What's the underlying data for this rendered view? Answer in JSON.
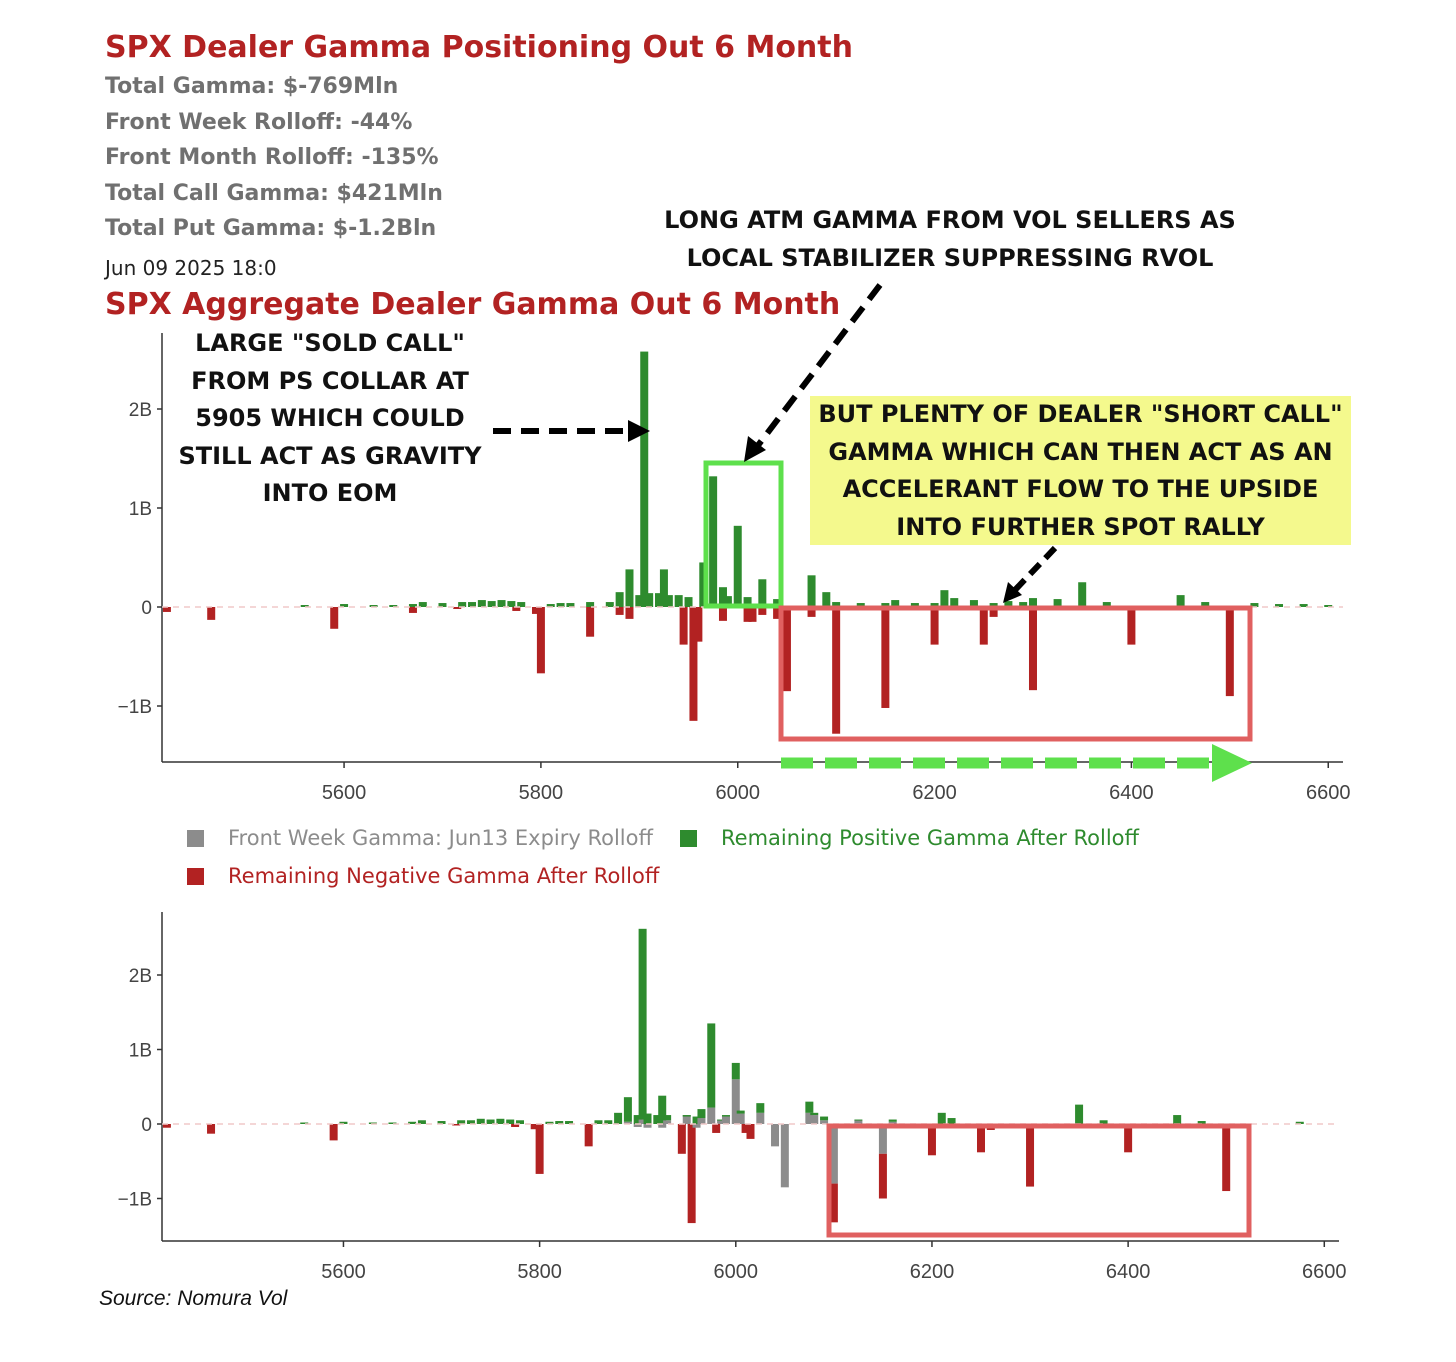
{
  "header": {
    "title": "SPX Dealer Gamma Positioning Out 6 Month",
    "stats": [
      "Total Gamma: $-769Mln",
      "Front Week Rolloff: -44%",
      "Front Month Rolloff: -135%",
      "Total Call Gamma: $421Mln",
      "Total Put Gamma: $-1.2Bln"
    ],
    "timestamp": "Jun 09 2025 18:0",
    "subtitle": "SPX Aggregate Dealer Gamma Out 6 Month"
  },
  "annotations": {
    "sold_call": [
      "LARGE \"SOLD CALL\"",
      "FROM PS COLLAR AT",
      "5905 WHICH COULD",
      "STILL ACT AS GRAVITY",
      "INTO EOM"
    ],
    "long_atm": [
      "LONG ATM GAMMA FROM VOL SELLERS AS",
      "LOCAL STABILIZER SUPPRESSING RVOL"
    ],
    "short_call": [
      "BUT PLENTY OF DEALER \"SHORT CALL\"",
      "GAMMA WHICH CAN THEN ACT AS AN",
      "ACCELERANT FLOW TO THE UPSIDE",
      "INTO FURTHER SPOT RALLY"
    ]
  },
  "legend": {
    "front_week": "Front Week Gamma: Jun13 Expiry Rolloff",
    "positive": "Remaining Positive Gamma After Rolloff",
    "negative": "Remaining Negative Gamma After Rolloff"
  },
  "source": "Source: Nomura Vol",
  "colors": {
    "title_red": "#b22222",
    "positive": "#2e8b2e",
    "negative": "#b22222",
    "rolloff": "#8c8c8c",
    "highlight_green": "#5ee04c",
    "highlight_red": "#e06060",
    "note_bg": "#f4f98d"
  },
  "chart_data": [
    {
      "type": "bar",
      "name": "aggregate",
      "xlim": [
        5415,
        6615
      ],
      "xticks": [
        5600,
        5800,
        6000,
        6200,
        6400,
        6600
      ],
      "ylim": [
        -1.55,
        2.75
      ],
      "yticks": [
        {
          "v": 2,
          "label": "2B"
        },
        {
          "v": 1,
          "label": "1B"
        },
        {
          "v": 0,
          "label": "0"
        },
        {
          "v": -1,
          "label": "−1B"
        }
      ],
      "positive": [
        [
          5560,
          0.02
        ],
        [
          5600,
          0.03
        ],
        [
          5630,
          0.02
        ],
        [
          5650,
          0.02
        ],
        [
          5670,
          0.03
        ],
        [
          5680,
          0.05
        ],
        [
          5700,
          0.04
        ],
        [
          5720,
          0.05
        ],
        [
          5730,
          0.05
        ],
        [
          5740,
          0.07
        ],
        [
          5750,
          0.06
        ],
        [
          5760,
          0.07
        ],
        [
          5770,
          0.06
        ],
        [
          5780,
          0.05
        ],
        [
          5810,
          0.03
        ],
        [
          5820,
          0.04
        ],
        [
          5830,
          0.04
        ],
        [
          5850,
          0.05
        ],
        [
          5870,
          0.05
        ],
        [
          5880,
          0.15
        ],
        [
          5890,
          0.38
        ],
        [
          5900,
          0.12
        ],
        [
          5905,
          2.58
        ],
        [
          5910,
          0.14
        ],
        [
          5920,
          0.14
        ],
        [
          5925,
          0.38
        ],
        [
          5930,
          0.12
        ],
        [
          5940,
          0.12
        ],
        [
          5950,
          0.1
        ],
        [
          5965,
          0.45
        ],
        [
          5975,
          1.32
        ],
        [
          5985,
          0.2
        ],
        [
          5990,
          0.11
        ],
        [
          6000,
          0.82
        ],
        [
          6010,
          0.1
        ],
        [
          6025,
          0.28
        ],
        [
          6040,
          0.08
        ],
        [
          6075,
          0.32
        ],
        [
          6090,
          0.15
        ],
        [
          6100,
          0.05
        ],
        [
          6125,
          0.04
        ],
        [
          6150,
          0.04
        ],
        [
          6160,
          0.07
        ],
        [
          6180,
          0.04
        ],
        [
          6200,
          0.04
        ],
        [
          6210,
          0.17
        ],
        [
          6220,
          0.09
        ],
        [
          6240,
          0.07
        ],
        [
          6260,
          0.04
        ],
        [
          6275,
          0.06
        ],
        [
          6290,
          0.05
        ],
        [
          6300,
          0.09
        ],
        [
          6325,
          0.08
        ],
        [
          6350,
          0.25
        ],
        [
          6375,
          0.05
        ],
        [
          6450,
          0.12
        ],
        [
          6475,
          0.05
        ],
        [
          6525,
          0.04
        ],
        [
          6550,
          0.03
        ],
        [
          6575,
          0.03
        ],
        [
          6600,
          0.02
        ]
      ],
      "negative": [
        [
          5420,
          -0.05
        ],
        [
          5465,
          -0.13
        ],
        [
          5590,
          -0.22
        ],
        [
          5670,
          -0.06
        ],
        [
          5715,
          -0.02
        ],
        [
          5775,
          -0.04
        ],
        [
          5795,
          -0.07
        ],
        [
          5800,
          -0.67
        ],
        [
          5850,
          -0.3
        ],
        [
          5880,
          -0.08
        ],
        [
          5890,
          -0.12
        ],
        [
          5945,
          -0.38
        ],
        [
          5955,
          -1.15
        ],
        [
          5960,
          -0.35
        ],
        [
          5985,
          -0.14
        ],
        [
          6010,
          -0.15
        ],
        [
          6015,
          -0.15
        ],
        [
          6025,
          -0.08
        ],
        [
          6040,
          -0.12
        ],
        [
          6050,
          -0.85
        ],
        [
          6075,
          -0.1
        ],
        [
          6100,
          -1.28
        ],
        [
          6150,
          -1.02
        ],
        [
          6200,
          -0.38
        ],
        [
          6250,
          -0.38
        ],
        [
          6260,
          -0.1
        ],
        [
          6300,
          -0.84
        ],
        [
          6400,
          -0.38
        ],
        [
          6500,
          -0.9
        ]
      ]
    },
    {
      "type": "bar",
      "name": "after_rolloff",
      "xlim": [
        5415,
        6615
      ],
      "xticks": [
        5600,
        5800,
        6000,
        6200,
        6400,
        6600
      ],
      "ylim": [
        -1.55,
        2.75
      ],
      "yticks": [
        {
          "v": 2,
          "label": "2B"
        },
        {
          "v": 1,
          "label": "1B"
        },
        {
          "v": 0,
          "label": "0"
        },
        {
          "v": -1,
          "label": "−1B"
        }
      ],
      "stacked": [
        [
          5420,
          0,
          -0.05
        ],
        [
          5465,
          0,
          -0.13
        ],
        [
          5560,
          0,
          0.02
        ],
        [
          5590,
          0,
          -0.22
        ],
        [
          5600,
          0,
          0.03
        ],
        [
          5630,
          0,
          0.02
        ],
        [
          5650,
          0,
          0.02
        ],
        [
          5670,
          0,
          0.03
        ],
        [
          5680,
          0,
          0.05
        ],
        [
          5700,
          0,
          0.04
        ],
        [
          5715,
          0,
          -0.02
        ],
        [
          5720,
          0,
          0.05
        ],
        [
          5730,
          0,
          0.05
        ],
        [
          5740,
          0,
          0.07
        ],
        [
          5750,
          0,
          0.06
        ],
        [
          5760,
          0,
          0.07
        ],
        [
          5770,
          0,
          0.06
        ],
        [
          5775,
          0,
          -0.04
        ],
        [
          5780,
          0,
          0.05
        ],
        [
          5795,
          0,
          -0.07
        ],
        [
          5800,
          0,
          -0.67
        ],
        [
          5810,
          0,
          0.03
        ],
        [
          5820,
          0,
          0.04
        ],
        [
          5830,
          0,
          0.04
        ],
        [
          5850,
          0,
          -0.3
        ],
        [
          5860,
          0,
          0.05
        ],
        [
          5870,
          0,
          0.05
        ],
        [
          5880,
          0,
          0.15
        ],
        [
          5890,
          0.03,
          0.36
        ],
        [
          5900,
          -0.04,
          0.12
        ],
        [
          5905,
          0.06,
          2.62
        ],
        [
          5910,
          -0.05,
          0.14
        ],
        [
          5920,
          0,
          0.12
        ],
        [
          5925,
          -0.05,
          0.38
        ],
        [
          5930,
          0.05,
          0.12
        ],
        [
          5945,
          0,
          -0.4
        ],
        [
          5950,
          0.12,
          0.1
        ],
        [
          5955,
          0,
          -1.33
        ],
        [
          5960,
          -0.05,
          0.1
        ],
        [
          5965,
          0.08,
          0.2
        ],
        [
          5975,
          0.22,
          1.35
        ],
        [
          5980,
          0,
          -0.12
        ],
        [
          5985,
          0.05,
          0.06
        ],
        [
          5990,
          0.1,
          0.12
        ],
        [
          6000,
          0.6,
          0.82
        ],
        [
          6005,
          0.14,
          0.18
        ],
        [
          6010,
          0,
          -0.12
        ],
        [
          6015,
          0,
          -0.2
        ],
        [
          6025,
          0.15,
          0.28
        ],
        [
          6040,
          -0.3,
          -0.3
        ],
        [
          6050,
          -0.85,
          -0.85
        ],
        [
          6075,
          0.15,
          0.3
        ],
        [
          6080,
          0.12,
          0.15
        ],
        [
          6090,
          0.05,
          0.1
        ],
        [
          6100,
          -0.8,
          -1.32
        ],
        [
          6125,
          0.05,
          0.06
        ],
        [
          6150,
          -0.4,
          -1.0
        ],
        [
          6160,
          0.03,
          0.06
        ],
        [
          6200,
          0,
          -0.42
        ],
        [
          6210,
          0,
          0.15
        ],
        [
          6220,
          0,
          0.08
        ],
        [
          6250,
          0,
          -0.38
        ],
        [
          6260,
          0,
          -0.08
        ],
        [
          6300,
          0,
          -0.84
        ],
        [
          6350,
          0,
          0.26
        ],
        [
          6375,
          0,
          0.05
        ],
        [
          6400,
          0,
          -0.38
        ],
        [
          6450,
          0,
          0.12
        ],
        [
          6475,
          0,
          0.04
        ],
        [
          6500,
          0,
          -0.9
        ],
        [
          6575,
          0,
          0.03
        ]
      ]
    }
  ]
}
